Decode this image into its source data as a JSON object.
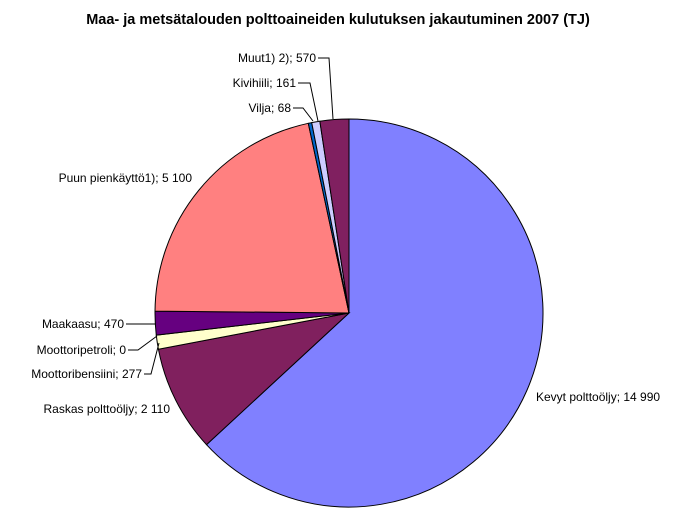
{
  "chart_data": {
    "type": "pie",
    "title": "Maa- ja metsätalouden polttoaineiden kulutuksen jakautuminen 2007 (TJ)",
    "slices": [
      {
        "label": "Kevyt polttoöljy; 14 990",
        "value": 14990,
        "color": "#8080ff"
      },
      {
        "label": "Raskas polttoöljy; 2 110",
        "value": 2110,
        "color": "#80205e"
      },
      {
        "label": "Moottoribensiini; 277",
        "value": 277,
        "color": "#ffffcc"
      },
      {
        "label": "Moottoripetroli; 0",
        "value": 0,
        "color": "#ccffff"
      },
      {
        "label": "Maakaasu; 470",
        "value": 470,
        "color": "#660080"
      },
      {
        "label": "Puun pienkäyttö1); 5 100",
        "value": 5100,
        "color": "#ff8080"
      },
      {
        "label": "Vilja; 68",
        "value": 68,
        "color": "#0066cc"
      },
      {
        "label": "Kivihiili; 161",
        "value": 161,
        "color": "#ccccff"
      },
      {
        "label": "Muut1) 2); 570",
        "value": 570,
        "color": "#802060"
      }
    ]
  }
}
